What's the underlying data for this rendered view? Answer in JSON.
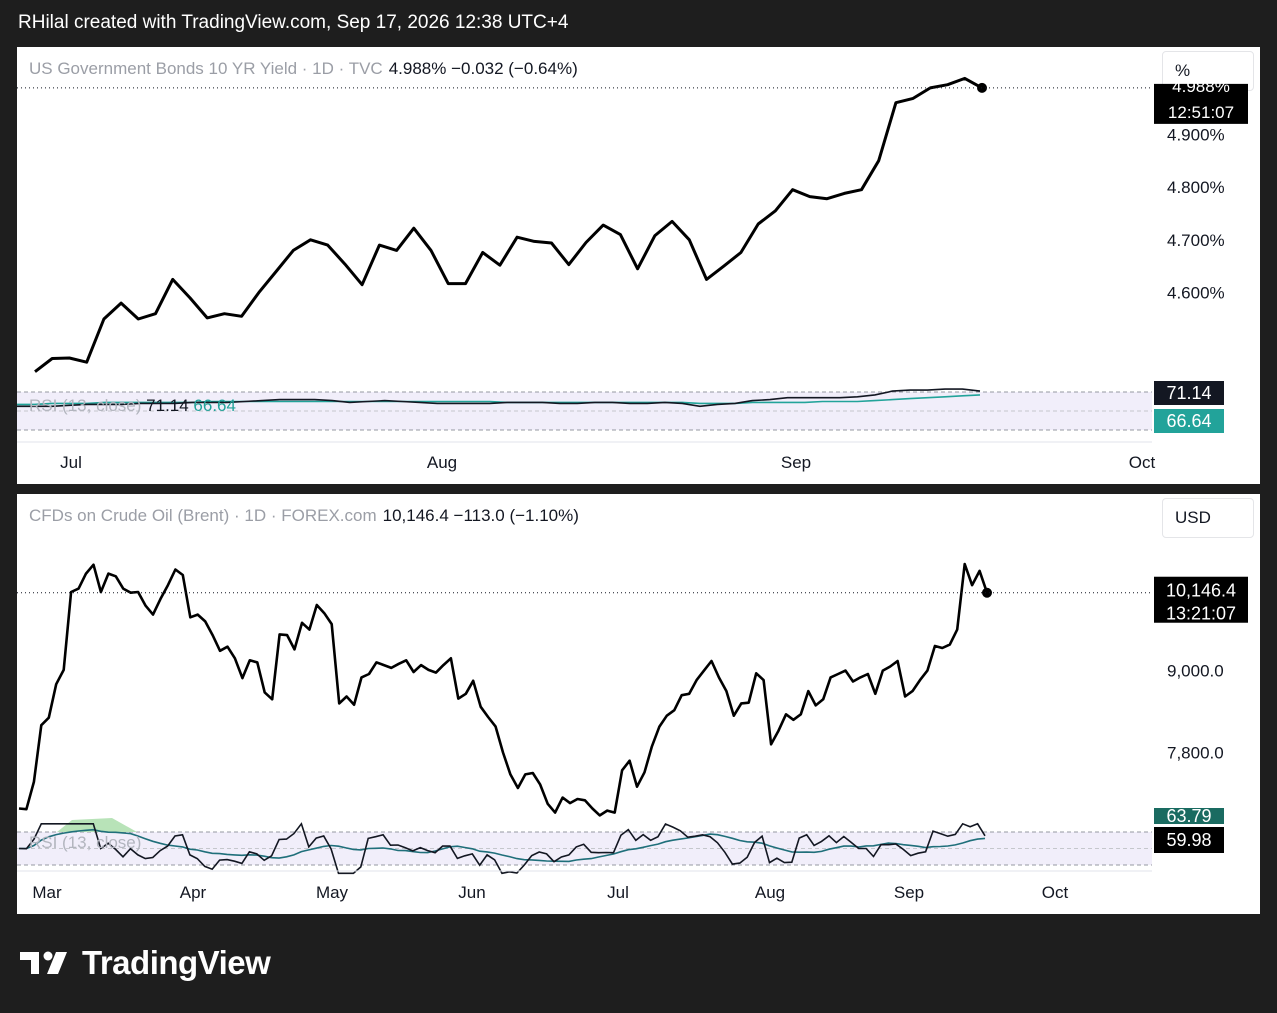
{
  "header": "RHilal created with TradingView.com, Sep 17, 2026 12:38 UTC+4",
  "brand": "TradingView",
  "panels": [
    {
      "symbol": "US Government Bonds 10 YR Yield · 1D · TVC",
      "values": "4.988%  −0.032 (−0.64%)",
      "unit": "%",
      "price_label": "4.988%",
      "countdown": "12:51:07",
      "rsi_label": "RSI (13, close)",
      "rsi_value": "71.14",
      "rsi_ma_value": "66.64",
      "rsi_badge": "71.14",
      "rsi_ma_badge": "66.64"
    },
    {
      "symbol": "CFDs on Crude Oil (Brent) · 1D · FOREX.com",
      "values": "10,146.4  −113.0 (−1.10%)",
      "unit": "USD",
      "price_label": "10,146.4",
      "countdown": "13:21:07",
      "rsi_label": "RSI (13, close)",
      "rsi_badge": "59.98",
      "rsi_ma_badge": "63.79"
    }
  ],
  "chart_data": [
    {
      "type": "line",
      "title": "US Government Bonds 10 YR Yield · 1D · TVC",
      "y_axis_unit": "%",
      "y_ticks": [
        "4.600%",
        "4.700%",
        "4.800%",
        "4.900%"
      ],
      "x_ticks": [
        "Jul",
        "Aug",
        "Sep",
        "Oct"
      ],
      "ylim": [
        4.44,
        5.02
      ],
      "last_value": 4.988,
      "change": -0.032,
      "change_pct": -0.64,
      "series": [
        {
          "values": [
            4.45,
            4.475,
            4.476,
            4.468,
            4.55,
            4.58,
            4.55,
            4.56,
            4.625,
            4.59,
            4.552,
            4.56,
            4.555,
            4.6,
            4.64,
            4.68,
            4.7,
            4.69,
            4.654,
            4.615,
            4.69,
            4.68,
            4.722,
            4.68,
            4.617,
            4.617,
            4.676,
            4.652,
            4.705,
            4.697,
            4.694,
            4.653,
            4.695,
            4.728,
            4.71,
            4.645,
            4.708,
            4.735,
            4.7,
            4.625,
            4.65,
            4.676,
            4.73,
            4.755,
            4.795,
            4.782,
            4.778,
            4.788,
            4.795,
            4.85,
            4.96,
            4.968,
            4.988,
            4.994,
            5.006,
            4.988
          ]
        }
      ],
      "rsi": {
        "label": "RSI (13, close)",
        "value": 71.14,
        "ma_value": 66.64,
        "rsi_series": [
          55,
          55,
          55,
          56,
          57,
          57,
          57,
          58,
          58,
          58,
          59,
          59,
          59,
          60,
          61,
          62,
          62,
          62,
          61,
          59,
          60,
          61,
          60,
          59,
          58,
          58,
          58,
          58,
          59,
          59,
          59,
          58,
          58,
          59,
          59,
          58,
          58,
          59,
          58,
          55,
          57,
          58,
          61,
          62,
          64,
          64,
          64,
          64,
          65,
          67,
          71,
          72,
          72,
          73,
          73,
          71
        ],
        "ma_series": [
          57,
          57,
          58,
          58,
          58,
          59,
          59,
          59,
          59,
          59,
          59,
          60,
          60,
          60,
          60,
          60,
          60,
          60,
          60,
          60,
          60,
          60,
          60,
          60,
          60,
          60,
          60,
          60,
          59,
          59,
          59,
          59,
          59,
          59,
          59,
          59,
          59,
          59,
          59,
          58,
          58,
          58,
          59,
          59,
          59,
          59,
          60,
          60,
          60,
          61,
          62,
          63,
          64,
          65,
          66,
          67
        ]
      }
    },
    {
      "type": "line",
      "title": "CFDs on Crude Oil (Brent) · 1D · FOREX.com",
      "y_axis_unit": "USD",
      "y_ticks": [
        "7,800.0",
        "9,000.0"
      ],
      "x_ticks": [
        "Mar",
        "Apr",
        "May",
        "Jun",
        "Jul",
        "Aug",
        "Sep",
        "Oct"
      ],
      "ylim": [
        6900,
        11000
      ],
      "last_value": 10146.4,
      "change": -113.0,
      "change_pct": -1.1,
      "series": [
        {
          "values": [
            6980,
            6970,
            7370,
            8200,
            8310,
            8800,
            9010,
            10150,
            10200,
            10420,
            10550,
            10150,
            10420,
            10380,
            10200,
            10140,
            10150,
            9950,
            9820,
            10050,
            10250,
            10480,
            10400,
            9780,
            9820,
            9720,
            9520,
            9290,
            9350,
            9180,
            8890,
            9150,
            9120,
            8680,
            8580,
            9530,
            9520,
            9310,
            9700,
            9600,
            9960,
            9840,
            9680,
            8520,
            8620,
            8500,
            8900,
            8950,
            9120,
            9080,
            9040,
            9100,
            9150,
            8980,
            9080,
            9010,
            8970,
            9080,
            9180,
            8590,
            8660,
            8850,
            8470,
            8320,
            8180,
            7800,
            7480,
            7280,
            7480,
            7500,
            7330,
            7050,
            6920,
            7140,
            7060,
            7120,
            7100,
            6980,
            6880,
            6950,
            6920,
            7540,
            7680,
            7300,
            7510,
            7890,
            8180,
            8340,
            8420,
            8640,
            8660,
            8860,
            9000,
            9140,
            8900,
            8700,
            8340,
            8520,
            8530,
            8960,
            8860,
            7920,
            8120,
            8360,
            8280,
            8360,
            8700,
            8490,
            8580,
            8900,
            8950,
            9000,
            8840,
            8900,
            8950,
            8660,
            9000,
            9060,
            9140,
            8620,
            8700,
            8860,
            9000,
            9360,
            9330,
            9380,
            9600,
            10560,
            10250,
            10460,
            10140
          ]
        }
      ],
      "rsi": {
        "label": "RSI (13, close)",
        "value": 59.98,
        "ma_value": 63.79
      }
    }
  ]
}
